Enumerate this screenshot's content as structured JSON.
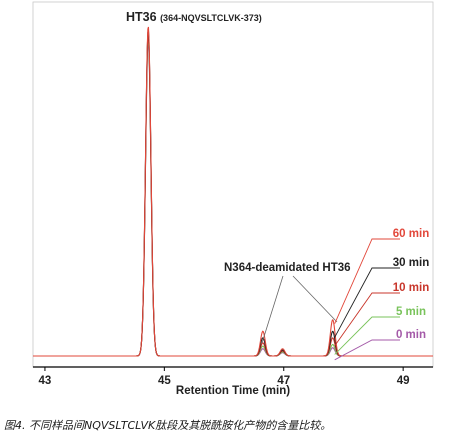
{
  "chart_data": {
    "type": "line",
    "title": "HT36",
    "title_suffix": "(364-NQVSLTCLVK-373)",
    "annotation": "N364-deamidated HT36",
    "xlabel": "Retention Time (min)",
    "xlim": [
      42.8,
      49.5
    ],
    "xticks": [
      43,
      45,
      47,
      49
    ],
    "ylim": [
      0,
      1.0
    ],
    "grid": false,
    "legend": "right (labels at trace ends)",
    "series": [
      {
        "name": "60 min",
        "color": "#e2473a",
        "main_height": 1.0,
        "deam_height": 0.075,
        "deam2_height": 0.022,
        "late_height": 0.11
      },
      {
        "name": "30 min",
        "color": "#222222",
        "main_height": 0.99,
        "deam_height": 0.055,
        "deam2_height": 0.018,
        "late_height": 0.075
      },
      {
        "name": "10 min",
        "color": "#c8362b",
        "main_height": 0.98,
        "deam_height": 0.04,
        "deam2_height": 0.015,
        "late_height": 0.055
      },
      {
        "name": "5 min",
        "color": "#79c35b",
        "main_height": 0.97,
        "deam_height": 0.03,
        "deam2_height": 0.012,
        "late_height": 0.035
      },
      {
        "name": "0 min",
        "color": "#a45aa8",
        "main_height": 0.96,
        "deam_height": 0.022,
        "deam2_height": 0.01,
        "late_height": 0.025
      }
    ],
    "peaks": {
      "main_x": 44.73,
      "deam_x": 46.65,
      "deam2_x": 46.98,
      "late_x": 47.82
    }
  },
  "caption": "图4. 不同样品间NQVSLTCLVK肽段及其脱酰胺化产物的含量比较。"
}
